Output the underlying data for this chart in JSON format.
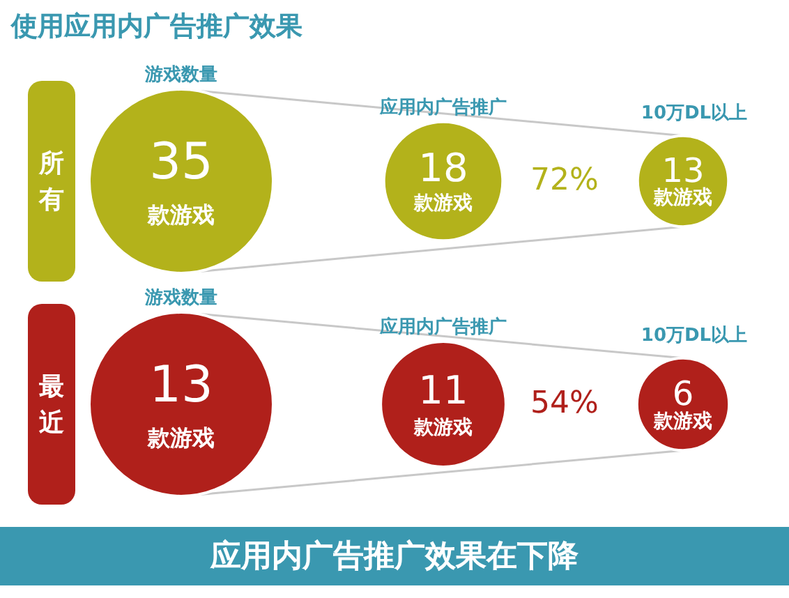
{
  "chart_data": {
    "type": "other",
    "title": "使用应用内广告推广效果",
    "categories": [
      "游戏数量",
      "应用内广告推广",
      "10万DL以上"
    ],
    "series": [
      {
        "name": "所有",
        "color": "#b3b21b",
        "values": [
          35,
          18,
          13
        ],
        "value_labels": [
          "35\n款游戏",
          "18\n款游戏",
          "13\n款游戏"
        ]
      },
      {
        "name": "最近",
        "color": "#b0201b",
        "values": [
          13,
          11,
          6
        ],
        "value_labels": [
          "13\n款游戏",
          "11\n款游戏",
          "6\n款游戏"
        ]
      }
    ],
    "annotations": [
      "72%",
      "54%",
      "应用内广告推广效果在下降"
    ]
  }
}
